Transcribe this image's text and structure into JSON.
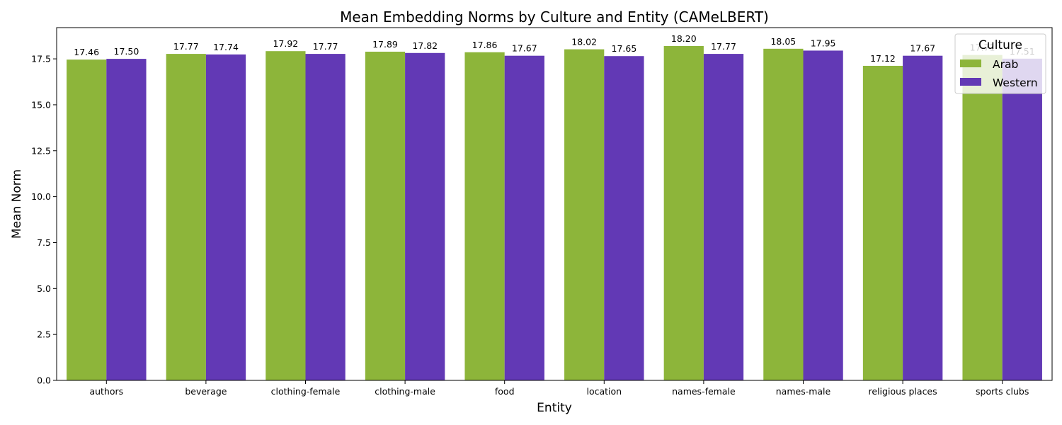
{
  "chart_data": {
    "type": "bar",
    "title": "Mean Embedding Norms by Culture and Entity (CAMeLBERT)",
    "xlabel": "Entity",
    "ylabel": "Mean Norm",
    "ylim": [
      0,
      19.2
    ],
    "yticks": [
      "0.0",
      "2.5",
      "5.0",
      "7.5",
      "10.0",
      "12.5",
      "15.0",
      "17.5"
    ],
    "ytick_values": [
      0,
      2.5,
      5,
      7.5,
      10,
      12.5,
      15,
      17.5
    ],
    "grid": false,
    "legend": {
      "title": "Culture",
      "placement": "top-right"
    },
    "categories": [
      "authors",
      "beverage",
      "clothing-female",
      "clothing-male",
      "food",
      "location",
      "names-female",
      "names-male",
      "religious places",
      "sports clubs"
    ],
    "series": [
      {
        "name": "Arab",
        "color": "#8db53a",
        "values": [
          17.46,
          17.77,
          17.92,
          17.89,
          17.86,
          18.02,
          18.2,
          18.05,
          17.12,
          17.71
        ],
        "labels": [
          "17.46",
          "17.77",
          "17.92",
          "17.89",
          "17.86",
          "18.02",
          "18.20",
          "18.05",
          "17.12",
          "17.71"
        ]
      },
      {
        "name": "Western",
        "color": "#6239b5",
        "values": [
          17.5,
          17.74,
          17.77,
          17.82,
          17.67,
          17.65,
          17.77,
          17.95,
          17.67,
          17.51
        ],
        "labels": [
          "17.50",
          "17.74",
          "17.77",
          "17.82",
          "17.67",
          "17.65",
          "17.77",
          "17.95",
          "17.67",
          "17.51"
        ]
      }
    ]
  }
}
